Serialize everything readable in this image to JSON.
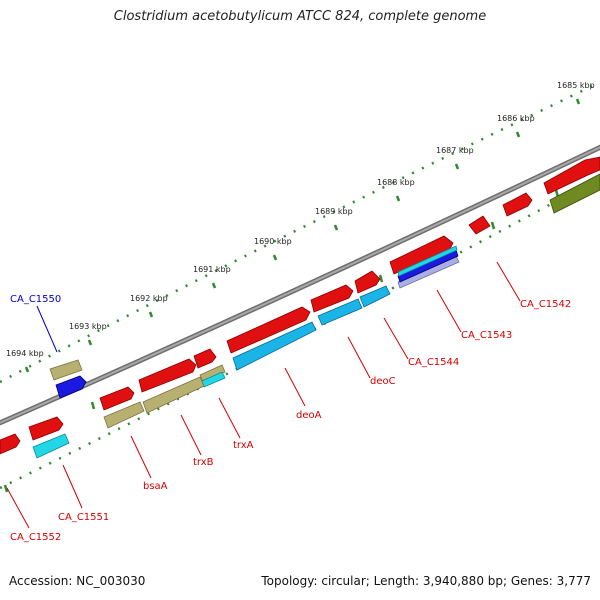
{
  "title": "Clostridium acetobutylicum ATCC 824, complete genome",
  "footer": {
    "accession": "Accession: NC_003030",
    "summary": "Topology: circular; Length: 3,940,880 bp; Genes: 3,777"
  },
  "colors": {
    "backbone": "#8a8a8a",
    "tick": "#2f8a2f",
    "cds_red": "#e01010",
    "cds_cyan": "#22d6e6",
    "cds_lightblue": "#1ab4e6",
    "cds_khaki": "#b8b070",
    "cds_blue": "#1a1ae0",
    "cds_olive": "#6e8a20",
    "cds_lavender": "#a9aee6",
    "label_red": "#d40000",
    "label_blue": "#0000cc"
  },
  "ruler": [
    {
      "label": "1685 kbp"
    },
    {
      "label": "1686 kbp"
    },
    {
      "label": "1687 kbp"
    },
    {
      "label": "1688 kbp"
    },
    {
      "label": "1689 kbp"
    },
    {
      "label": "1690 kbp"
    },
    {
      "label": "1691 kbp"
    },
    {
      "label": "1692 kbp"
    },
    {
      "label": "1693 kbp"
    },
    {
      "label": "1694 kbp"
    }
  ],
  "gene_labels": [
    {
      "name": "CA_C1542",
      "color": "red"
    },
    {
      "name": "CA_C1543",
      "color": "red"
    },
    {
      "name": "CA_C1544",
      "color": "red"
    },
    {
      "name": "deoC",
      "color": "red"
    },
    {
      "name": "deoA",
      "color": "red"
    },
    {
      "name": "trxA",
      "color": "red"
    },
    {
      "name": "trxB",
      "color": "red"
    },
    {
      "name": "bsaA",
      "color": "red"
    },
    {
      "name": "CA_C1550",
      "color": "blue"
    },
    {
      "name": "CA_C1551",
      "color": "red"
    },
    {
      "name": "CA_C1552",
      "color": "red"
    }
  ]
}
